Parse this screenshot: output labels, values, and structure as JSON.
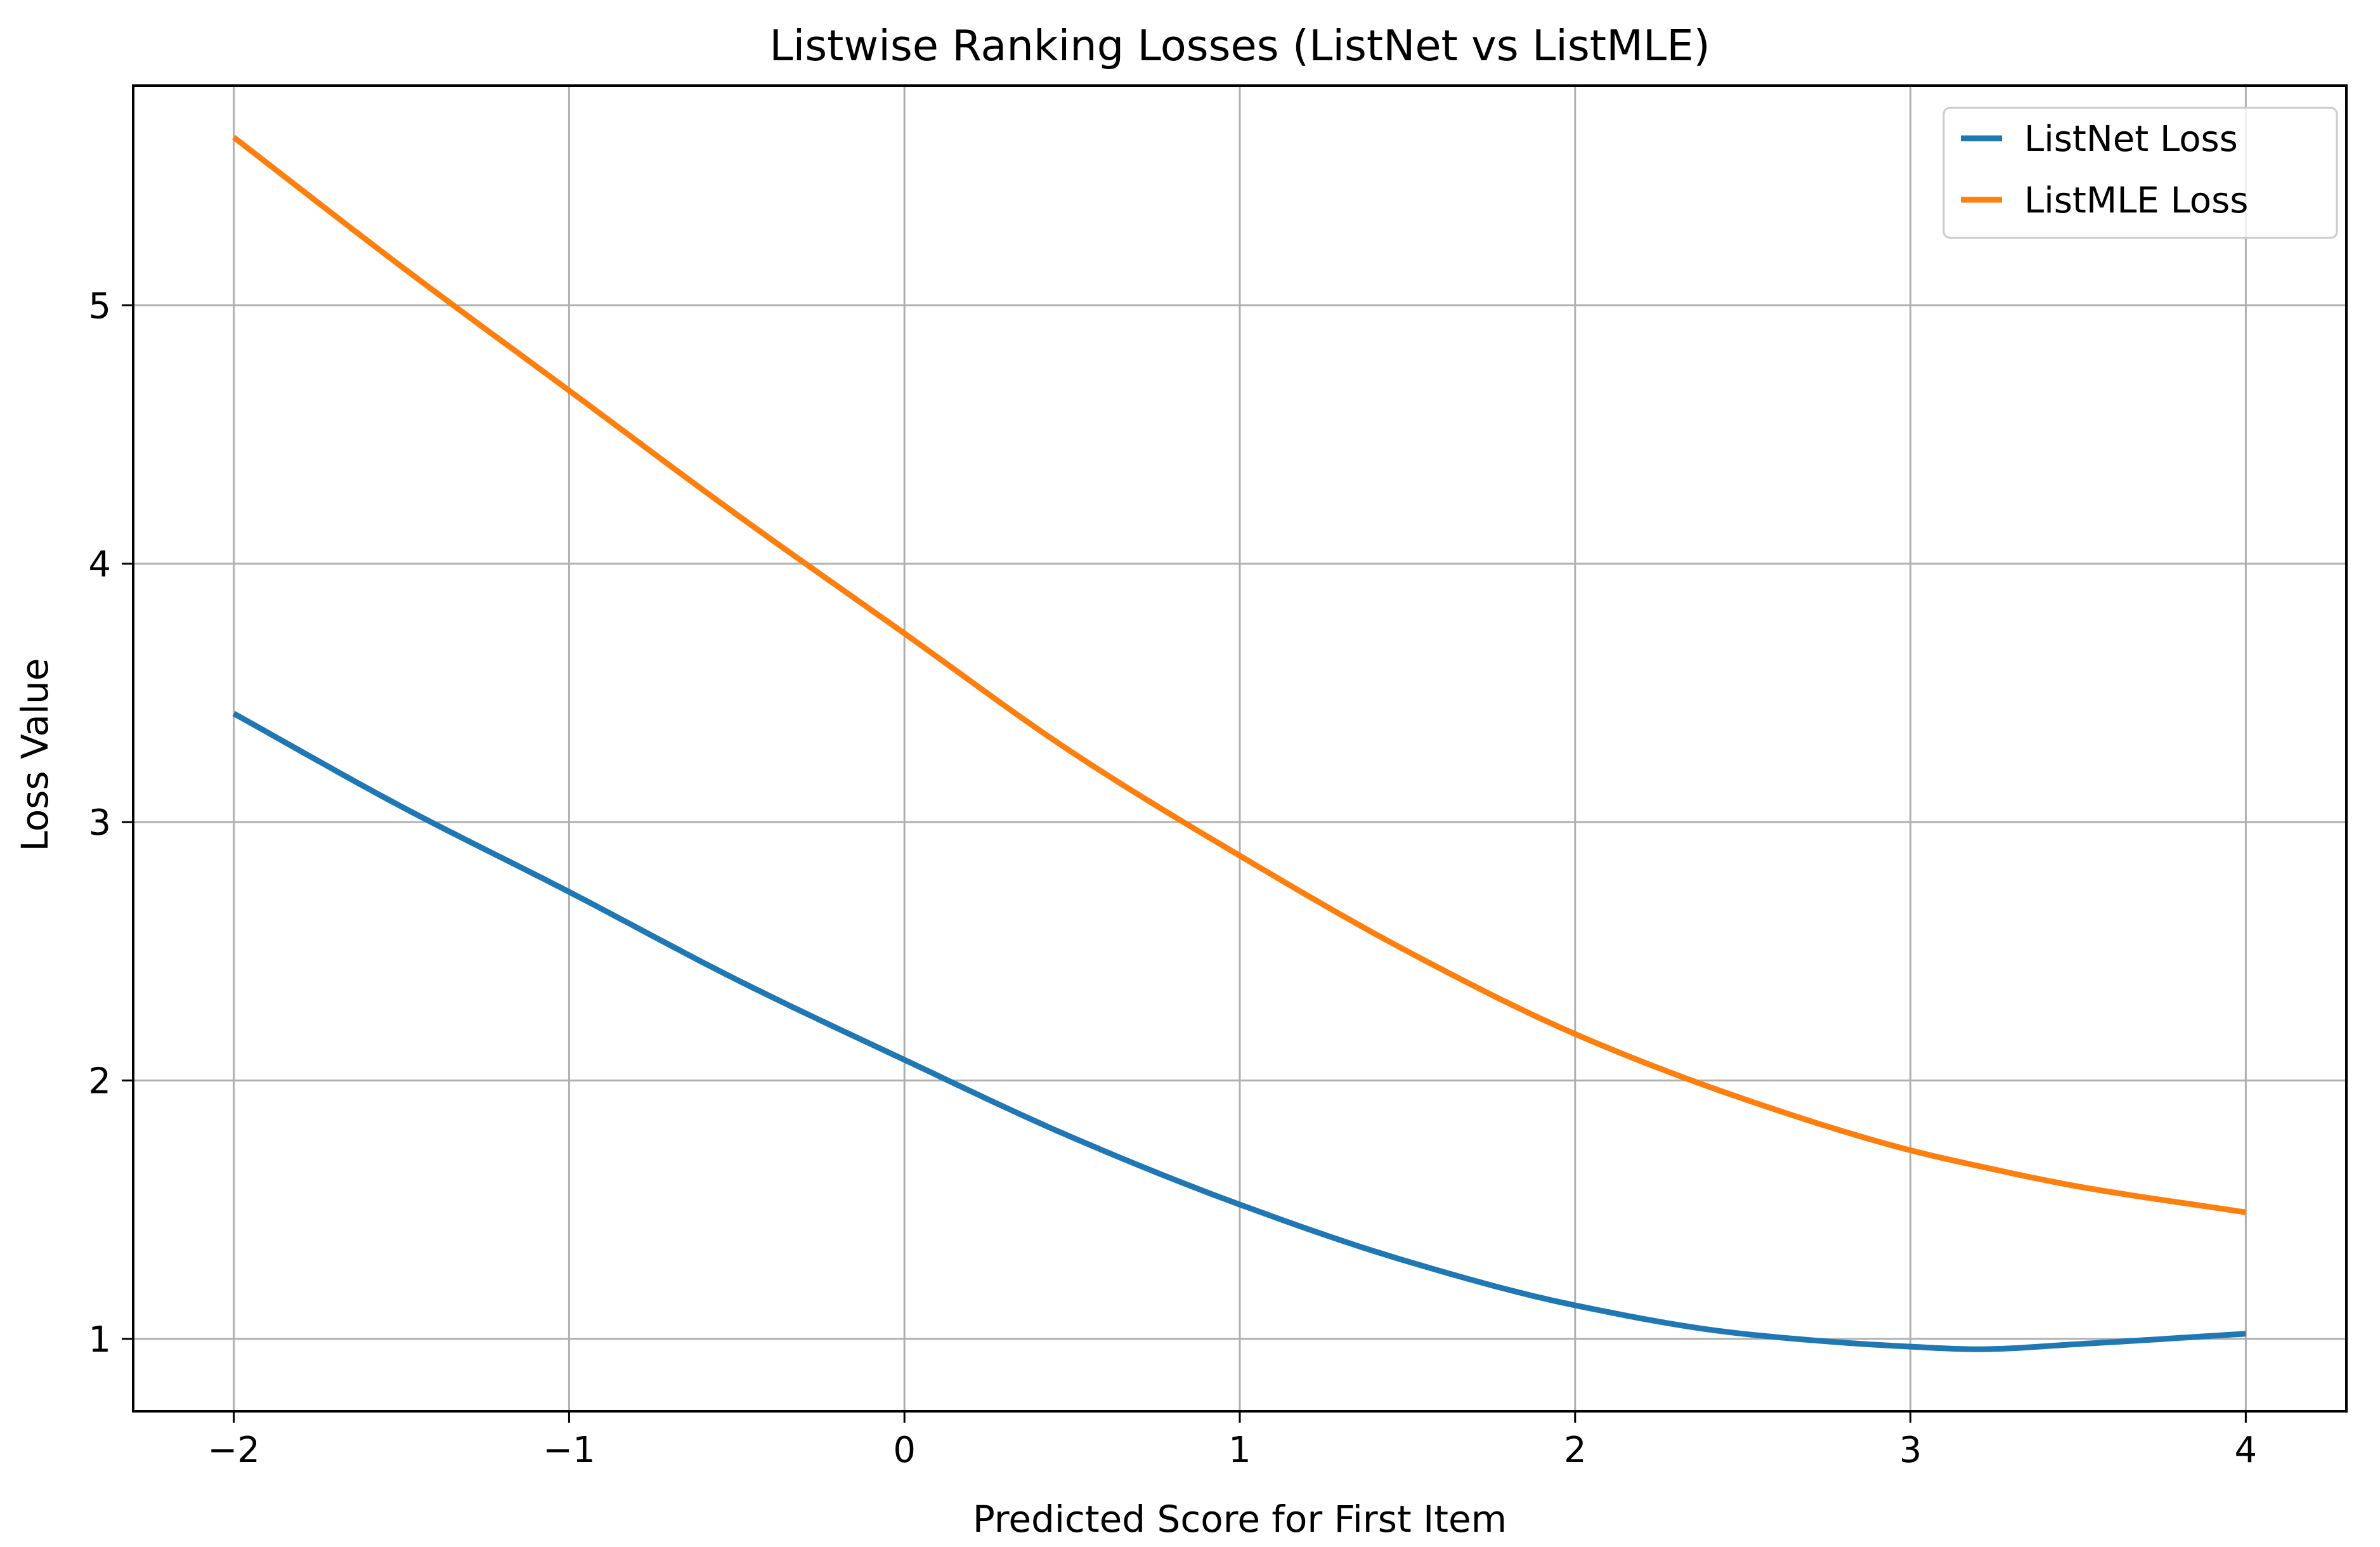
{
  "chart_data": {
    "type": "line",
    "title": "Listwise Ranking Losses (ListNet vs ListMLE)",
    "xlabel": "Predicted Score for First Item",
    "ylabel": "Loss Value",
    "xlim": [
      -2.3,
      4.3
    ],
    "ylim": [
      0.72,
      5.85
    ],
    "grid": true,
    "legend_position": "top-right",
    "x_ticks": [
      -2,
      -1,
      0,
      1,
      2,
      3,
      4
    ],
    "x_tick_labels": [
      "−2",
      "−1",
      "0",
      "1",
      "2",
      "3",
      "4"
    ],
    "y_ticks": [
      1,
      2,
      3,
      4,
      5
    ],
    "y_tick_labels": [
      "1",
      "2",
      "3",
      "4",
      "5"
    ],
    "x": [
      -2.0,
      -1.5,
      -1.0,
      -0.5,
      0.0,
      0.5,
      1.0,
      1.5,
      2.0,
      2.5,
      3.0,
      3.2,
      3.5,
      4.0
    ],
    "series": [
      {
        "name": "ListNet Loss",
        "color": "#1f77b4",
        "values": [
          3.42,
          3.06,
          2.73,
          2.39,
          2.08,
          1.78,
          1.52,
          1.3,
          1.13,
          1.02,
          0.97,
          0.96,
          0.98,
          1.02
        ]
      },
      {
        "name": "ListMLE Loss",
        "color": "#ff7f0e",
        "values": [
          5.65,
          5.15,
          4.67,
          4.19,
          3.73,
          3.27,
          2.87,
          2.5,
          2.18,
          1.93,
          1.73,
          1.67,
          1.59,
          1.49
        ]
      }
    ]
  }
}
